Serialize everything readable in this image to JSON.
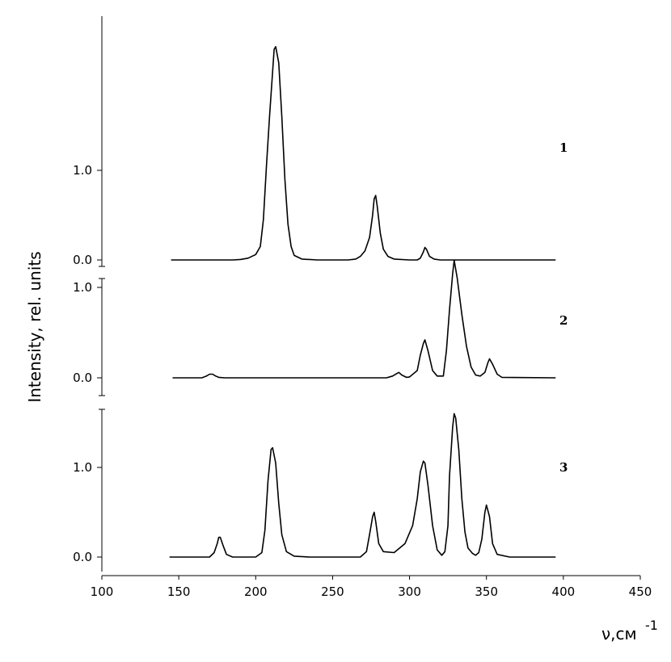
{
  "chart_data": {
    "type": "line",
    "ylabel": "Intensity, rel. units",
    "xlabel": "ν,см",
    "xlabel_superscript": "-1",
    "xlim": [
      100,
      450
    ],
    "x_ticks": [
      "100",
      "150",
      "200",
      "250",
      "300",
      "350",
      "400",
      "450"
    ],
    "panels": [
      {
        "label": "1",
        "ylim": [
          0,
          2.4
        ],
        "y_ticks": [
          "0.0",
          "1.0"
        ],
        "y_tick_values": [
          0,
          1.0
        ],
        "series": {
          "x": [
            145,
            185,
            190,
            195,
            200,
            203,
            205,
            207,
            209,
            211,
            212,
            213,
            215,
            217,
            219,
            221,
            223,
            225,
            230,
            240,
            260,
            265,
            268,
            271,
            274,
            276,
            277,
            278,
            279,
            281,
            283,
            286,
            290,
            300,
            305,
            307,
            309,
            310,
            311,
            313,
            316,
            320,
            395
          ],
          "y": [
            0,
            0,
            0.005,
            0.02,
            0.06,
            0.15,
            0.45,
            1.05,
            1.6,
            2.1,
            2.35,
            2.38,
            2.2,
            1.6,
            0.9,
            0.4,
            0.15,
            0.05,
            0.01,
            0,
            0,
            0.01,
            0.04,
            0.1,
            0.25,
            0.5,
            0.68,
            0.72,
            0.6,
            0.3,
            0.12,
            0.04,
            0.01,
            0,
            0,
            0.02,
            0.09,
            0.14,
            0.12,
            0.04,
            0.01,
            0,
            0
          ]
        }
      },
      {
        "label": "2",
        "ylim": [
          0,
          1.3
        ],
        "y_ticks": [
          "0.0",
          "1.0"
        ],
        "y_tick_values": [
          0,
          1.0
        ],
        "series": {
          "x": [
            146,
            165,
            168,
            170,
            172,
            174,
            176,
            180,
            285,
            289,
            292,
            293,
            295,
            298,
            300,
            305,
            307,
            309,
            310,
            312,
            315,
            318,
            322,
            324,
            326,
            328,
            329,
            331,
            334,
            337,
            340,
            343,
            346,
            349,
            351,
            352,
            354,
            357,
            360,
            395
          ],
          "y": [
            0,
            0,
            0.02,
            0.04,
            0.04,
            0.02,
            0.005,
            0,
            0,
            0.02,
            0.05,
            0.06,
            0.03,
            0.005,
            0.01,
            0.08,
            0.25,
            0.38,
            0.42,
            0.3,
            0.08,
            0.02,
            0.02,
            0.3,
            0.75,
            1.15,
            1.3,
            1.1,
            0.7,
            0.35,
            0.12,
            0.03,
            0.02,
            0.06,
            0.17,
            0.21,
            0.15,
            0.04,
            0.005,
            0
          ]
        }
      },
      {
        "label": "3",
        "ylim": [
          0,
          1.65
        ],
        "y_ticks": [
          "0.0",
          "1.0"
        ],
        "y_tick_values": [
          0,
          1.0
        ],
        "series": {
          "x": [
            144,
            170,
            173,
            175,
            176,
            177,
            179,
            181,
            185,
            200,
            204,
            206,
            208,
            210,
            211,
            213,
            215,
            217,
            220,
            225,
            235,
            268,
            272,
            274,
            276,
            277,
            278,
            280,
            283,
            290,
            297,
            302,
            305,
            307,
            309,
            310,
            312,
            315,
            318,
            321,
            323,
            325,
            326,
            328,
            329,
            330,
            332,
            334,
            336,
            338,
            341,
            343,
            345,
            347,
            349,
            350,
            352,
            354,
            357,
            365,
            395
          ],
          "y": [
            0,
            0,
            0.05,
            0.15,
            0.22,
            0.22,
            0.12,
            0.03,
            0,
            0,
            0.05,
            0.3,
            0.85,
            1.2,
            1.22,
            1.05,
            0.6,
            0.25,
            0.06,
            0.01,
            0,
            0,
            0.06,
            0.25,
            0.45,
            0.5,
            0.4,
            0.15,
            0.06,
            0.05,
            0.15,
            0.35,
            0.65,
            0.95,
            1.07,
            1.05,
            0.8,
            0.35,
            0.08,
            0.02,
            0.06,
            0.35,
            0.9,
            1.45,
            1.6,
            1.55,
            1.2,
            0.65,
            0.28,
            0.1,
            0.04,
            0.02,
            0.05,
            0.2,
            0.5,
            0.58,
            0.45,
            0.15,
            0.03,
            0,
            0
          ]
        }
      }
    ]
  }
}
